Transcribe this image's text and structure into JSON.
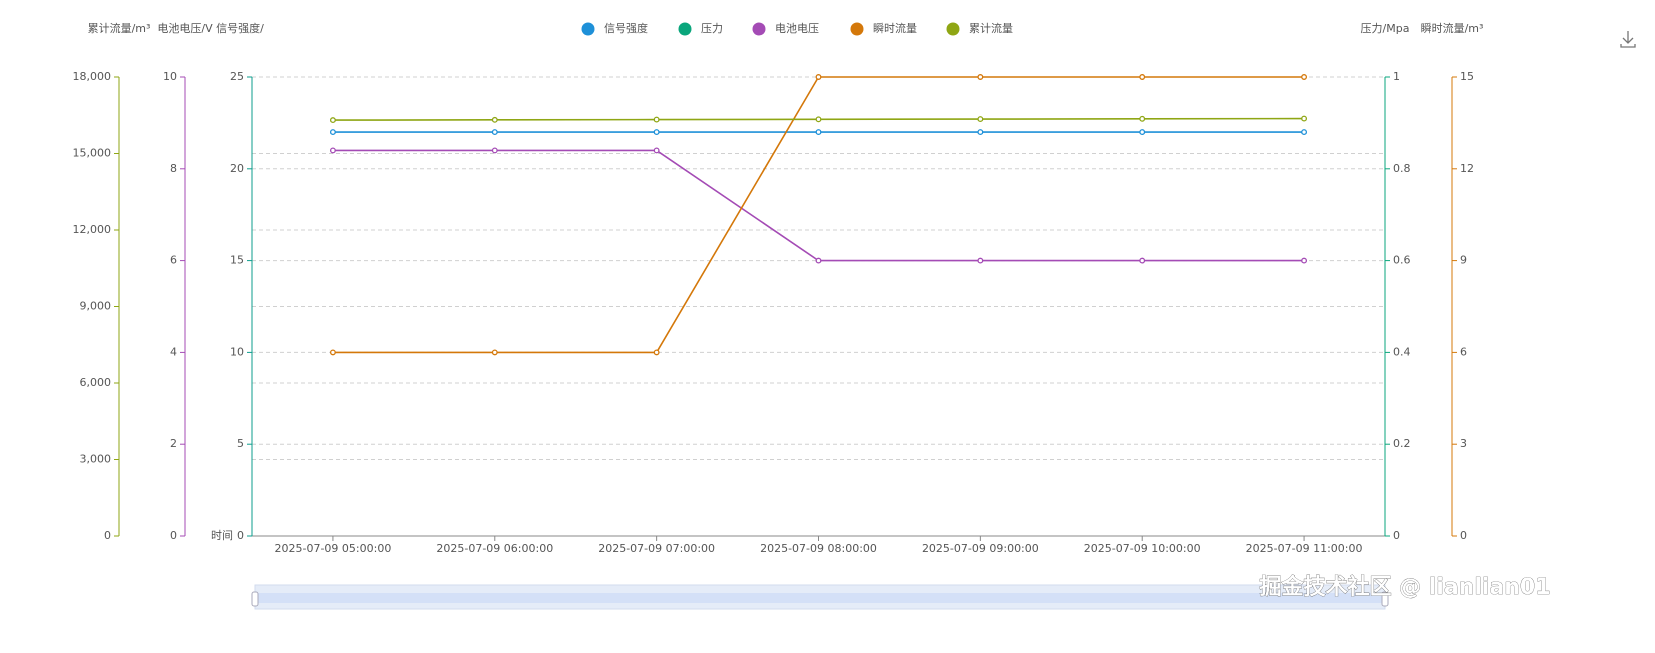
{
  "chart_data": {
    "type": "line",
    "x_label": "时间",
    "categories": [
      "2025-07-09 05:00:00",
      "2025-07-09 06:00:00",
      "2025-07-09 07:00:00",
      "2025-07-09 08:00:00",
      "2025-07-09 09:00:00",
      "2025-07-09 10:00:00",
      "2025-07-09 11:00:00"
    ],
    "y_axes": [
      {
        "name": "累计流量/m³",
        "color": "#8fa614",
        "side": "left",
        "grid": true,
        "ylim": [
          0,
          18000
        ],
        "yticks": [
          0,
          {
            "value": 3000,
            "label": "3,000"
          },
          {
            "value": 6000,
            "label": "6,000"
          },
          {
            "value": 9000,
            "label": "9,000"
          },
          {
            "value": 12000,
            "label": "12,000"
          },
          {
            "value": 15000,
            "label": "15,000"
          },
          {
            "value": 18000,
            "label": "18,000"
          }
        ]
      },
      {
        "name": "电池电压/V",
        "color": "#a44bb5",
        "side": "left",
        "grid": false,
        "ylim": [
          0,
          10
        ],
        "yticks": [
          0,
          2,
          4,
          6,
          8,
          10
        ]
      },
      {
        "name": "信号强度/",
        "color": "#0e9e8e",
        "side": "left",
        "grid": true,
        "ylim": [
          0,
          25
        ],
        "yticks": [
          0,
          5,
          10,
          15,
          20,
          25
        ]
      },
      {
        "name": "压力/Mpa",
        "color": "#0aa67c",
        "side": "right",
        "grid": false,
        "ylim": [
          0,
          1
        ],
        "yticks": [
          0,
          0.2,
          0.4,
          0.6,
          0.8,
          1
        ]
      },
      {
        "name": "瞬时流量/m³",
        "color": "#d4780a",
        "side": "right",
        "grid": false,
        "ylim": [
          0,
          15
        ],
        "yticks": [
          0,
          3,
          6,
          9,
          12,
          15
        ]
      }
    ],
    "series": [
      {
        "name": "信号强度",
        "color": "#1e90d8",
        "axis": 2,
        "values": [
          22,
          22,
          22,
          22,
          22,
          22,
          22
        ]
      },
      {
        "name": "压力",
        "color": "#0aa67c",
        "axis": 3,
        "values": [
          null,
          null,
          null,
          null,
          null,
          null,
          null
        ]
      },
      {
        "name": "电池电压",
        "color": "#a44bb5",
        "axis": 1,
        "values": [
          8.4,
          8.4,
          8.4,
          6,
          6,
          6,
          6
        ]
      },
      {
        "name": "瞬时流量",
        "color": "#d4780a",
        "axis": 4,
        "values": [
          6,
          6,
          6,
          15,
          15,
          15,
          15
        ]
      },
      {
        "name": "累计流量",
        "color": "#8fa614",
        "axis": 0,
        "values": [
          16310,
          16320,
          16330,
          16340,
          16350,
          16360,
          16370
        ]
      }
    ]
  },
  "watermark": "掘金技术社区 @ lianlian01"
}
